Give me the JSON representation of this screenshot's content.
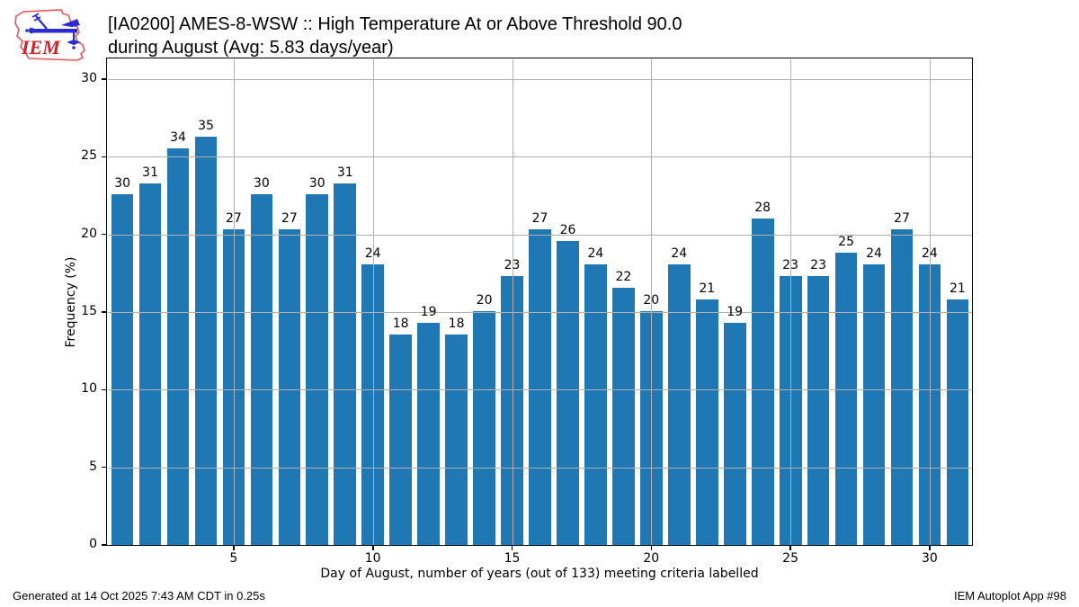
{
  "header": {
    "logo_text": "IEM",
    "title_line1": "[IA0200] AMES-8-WSW :: High Temperature At or Above Threshold 90.0",
    "title_line2": "during August (Avg: 5.83 days/year)"
  },
  "chart_data": {
    "type": "bar",
    "title": "[IA0200] AMES-8-WSW :: High Temperature At or Above Threshold 90.0 during August (Avg: 5.83 days/year)",
    "xlabel": "Day of August, number of years (out of 133) meeting criteria labelled",
    "ylabel": "Frequency (%)",
    "total_years": 133,
    "x": [
      1,
      2,
      3,
      4,
      5,
      6,
      7,
      8,
      9,
      10,
      11,
      12,
      13,
      14,
      15,
      16,
      17,
      18,
      19,
      20,
      21,
      22,
      23,
      24,
      25,
      26,
      27,
      28,
      29,
      30,
      31
    ],
    "counts": [
      30,
      31,
      34,
      35,
      27,
      30,
      27,
      30,
      31,
      24,
      18,
      19,
      18,
      20,
      23,
      27,
      26,
      24,
      22,
      20,
      24,
      21,
      19,
      28,
      23,
      23,
      25,
      24,
      27,
      24,
      21
    ],
    "values_pct": [
      22.56,
      23.31,
      25.56,
      26.32,
      20.3,
      22.56,
      20.3,
      22.56,
      23.31,
      18.05,
      13.53,
      14.29,
      13.53,
      15.04,
      17.29,
      20.3,
      19.55,
      18.05,
      16.54,
      15.04,
      18.05,
      15.79,
      14.29,
      21.05,
      17.29,
      17.29,
      18.8,
      18.05,
      20.3,
      18.05,
      15.79
    ],
    "bar_color": "#1f77b4",
    "grid_color": "#b0b0b0",
    "axis_color": "#000000",
    "xticks": [
      5,
      10,
      15,
      20,
      25,
      30
    ],
    "yticks": [
      0,
      5,
      10,
      15,
      20,
      25,
      30
    ],
    "xlim": [
      0.48,
      31.52
    ],
    "ylim": [
      0,
      31.27
    ],
    "grid": true,
    "legend": "none",
    "bar_width_frac": 0.8
  },
  "footer": {
    "generated": "Generated at 14 Oct 2025 7:43 AM CDT in 0.25s",
    "app": "IEM Autoplot App #98"
  }
}
